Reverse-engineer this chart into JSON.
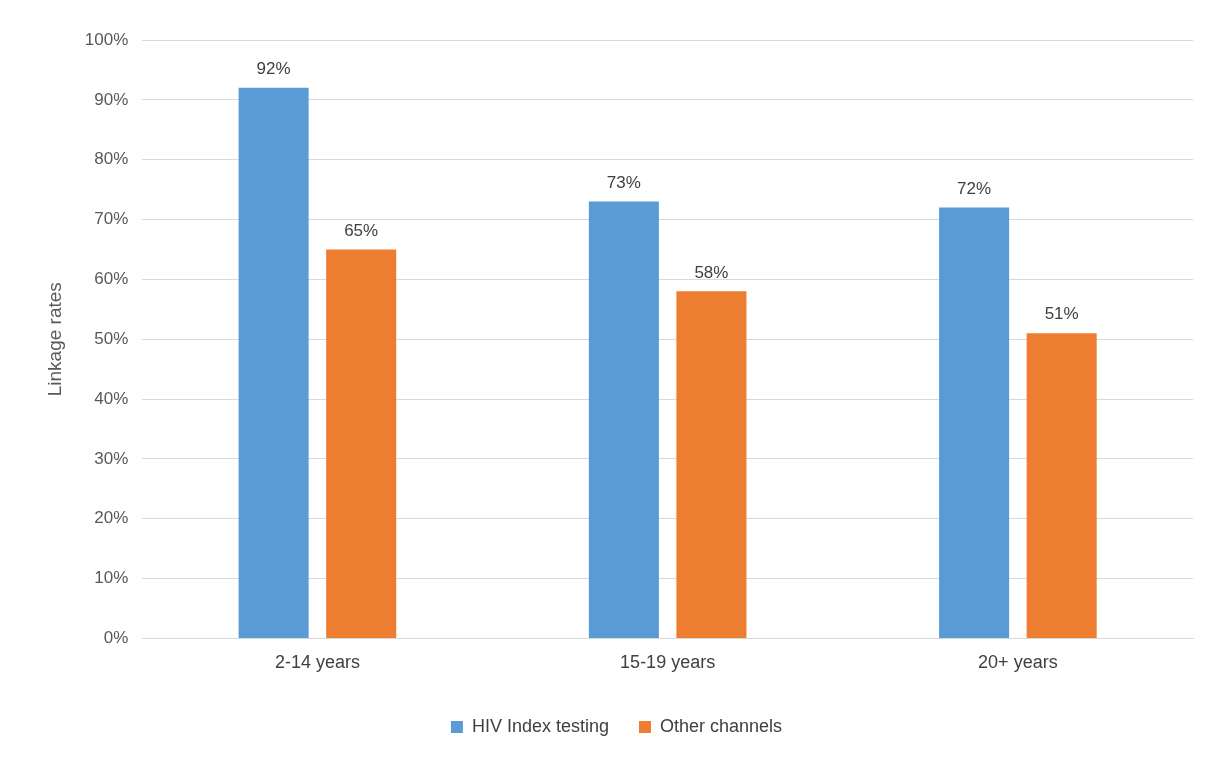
{
  "chart_data": {
    "type": "bar",
    "ylabel": "Linkage rates",
    "categories": [
      "2-14 years",
      "15-19 years",
      "20+ years"
    ],
    "series": [
      {
        "name": "HIV Index testing",
        "color": "#5b9bd5",
        "values": [
          92,
          73,
          72
        ],
        "value_labels": [
          "92%",
          "73%",
          "72%"
        ]
      },
      {
        "name": "Other channels",
        "color": "#ed7d31",
        "values": [
          65,
          58,
          51
        ],
        "value_labels": [
          "65%",
          "58%",
          "51%"
        ]
      }
    ],
    "ylim": [
      0,
      100
    ],
    "yticks": [
      {
        "value": 0,
        "label": "0%"
      },
      {
        "value": 10,
        "label": "10%"
      },
      {
        "value": 20,
        "label": "20%"
      },
      {
        "value": 30,
        "label": "30%"
      },
      {
        "value": 40,
        "label": "40%"
      },
      {
        "value": 50,
        "label": "50%"
      },
      {
        "value": 60,
        "label": "60%"
      },
      {
        "value": 70,
        "label": "70%"
      },
      {
        "value": 80,
        "label": "80%"
      },
      {
        "value": 90,
        "label": "90%"
      },
      {
        "value": 100,
        "label": "100%"
      }
    ],
    "grid": "y",
    "legend": "bottom"
  }
}
